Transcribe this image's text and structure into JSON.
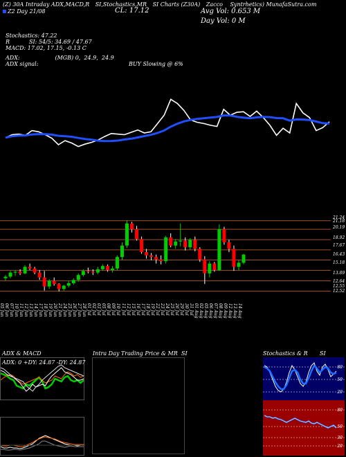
{
  "header": {
    "line1_parts": [
      "(Z) 30A Intraday",
      "ADX,MACD,R",
      "SI,Stochastics,MR",
      "SI Charts (Z30A)",
      "Zacco",
      "Syntrhetics) MunafaSutra.com"
    ],
    "line2": "Z2 Day 21/08",
    "close_label": "CL: 17.12",
    "avg_vol": "Avg Vol: 0.653 M",
    "day_vol": "Day Vol: 0  M"
  },
  "indicators": {
    "stochastics": "Stochastics: 47.22",
    "rsi": "R           SI: 54/5: 34.69 / 47.67",
    "macd": "MACD: 17.02,  17.15,  -0.13 C",
    "adx": "ADX:                    (MGB) 0,  24.9,  24.9",
    "adx_signal": "ADX  signal:",
    "buy_signal": "BUY Slowing @ 6%"
  },
  "price_levels": [
    "21.24",
    "21.18",
    "20.19",
    "18.92",
    "17.67",
    "16.43",
    "15.18",
    "13.89",
    "12.64",
    "12.55",
    "12.52"
  ],
  "dates": [
    "05 Jun",
    "06 Jun",
    "07 Jun",
    "10 Jun",
    "11 Jun",
    "12 Jun",
    "13 Jun",
    "14 Jun",
    "17 Jun",
    "18 Jun",
    "19 Jun",
    "20 Jun",
    "21 Jun",
    "24 Jun",
    "25 Jun",
    "26 Jun",
    "27 Jun",
    "28 Jun",
    "01 Jul",
    "02 Jul",
    "03 Jul",
    "05 Jul",
    "08 Jul",
    "09 Jul",
    "10 Jul",
    "11 Jul",
    "12 Jul",
    "15 Jul",
    "16 Jul",
    "17 Jul",
    "18 Jul",
    "19 Jul",
    "22 Jul",
    "23 Jul",
    "24 Jul",
    "25 Jul",
    "26 Jul",
    "29 Jul",
    "30 Jul",
    "31 Jul",
    "01 Aug",
    "02 Aug",
    "05 Aug",
    "06 Aug",
    "07 Aug",
    "08 Aug",
    "09 Aug",
    "12 Aug",
    "13 Aug",
    "14 Aug"
  ],
  "panels": {
    "adx_title": "ADX  & MACD",
    "adx_values": "ADX: 0  +DY: 24.87  -DY: 24.87",
    "mr_title": "Intra  Day Trading Price  & MR",
    "mr_si": "SI",
    "stoch_title": "Stochastics & R",
    "stoch_si": "SI",
    "stoch_ticks": [
      "80",
      "50",
      "20"
    ],
    "rsi_ticks": [
      "80",
      "50",
      "30",
      "20"
    ]
  },
  "colors": {
    "up": "#00cc00",
    "down": "#ff0000",
    "ma": "#1f4fff",
    "price": "#ffffff",
    "grid": "#a0522d",
    "stoch_bg": "#000066",
    "rsi_bg": "#9a0000"
  },
  "chart_data": {
    "type": "candlestick",
    "x": [
      "05 Jun",
      "06 Jun",
      "07 Jun",
      "10 Jun",
      "11 Jun",
      "12 Jun",
      "13 Jun",
      "14 Jun",
      "17 Jun",
      "18 Jun",
      "19 Jun",
      "20 Jun",
      "21 Jun",
      "24 Jun",
      "25 Jun",
      "26 Jun",
      "27 Jun",
      "28 Jun",
      "01 Jul",
      "02 Jul",
      "03 Jul",
      "05 Jul",
      "08 Jul",
      "09 Jul",
      "10 Jul",
      "11 Jul",
      "12 Jul",
      "15 Jul",
      "16 Jul",
      "17 Jul",
      "18 Jul",
      "19 Jul",
      "22 Jul",
      "23 Jul",
      "24 Jul",
      "25 Jul",
      "26 Jul",
      "29 Jul",
      "30 Jul",
      "31 Jul",
      "01 Aug",
      "02 Aug",
      "05 Aug",
      "06 Aug",
      "07 Aug",
      "08 Aug",
      "09 Aug",
      "12 Aug",
      "13 Aug",
      "14 Aug"
    ],
    "ohlc": [
      [
        14.2,
        14.6,
        13.9,
        14.4
      ],
      [
        14.4,
        15.1,
        14.2,
        14.9
      ],
      [
        14.9,
        15.2,
        14.5,
        15.0
      ],
      [
        15.0,
        15.3,
        14.6,
        14.8
      ],
      [
        14.8,
        15.8,
        14.7,
        15.6
      ],
      [
        15.6,
        16.0,
        15.2,
        15.4
      ],
      [
        15.4,
        15.6,
        14.7,
        14.9
      ],
      [
        14.9,
        15.2,
        14.0,
        14.3
      ],
      [
        14.3,
        15.1,
        12.7,
        13.2
      ],
      [
        13.2,
        14.1,
        12.9,
        13.9
      ],
      [
        13.9,
        14.3,
        13.3,
        13.5
      ],
      [
        13.5,
        13.6,
        12.6,
        12.9
      ],
      [
        12.9,
        13.4,
        12.7,
        13.3
      ],
      [
        13.3,
        13.9,
        13.1,
        13.6
      ],
      [
        13.6,
        14.2,
        13.4,
        14.0
      ],
      [
        14.0,
        14.8,
        13.8,
        14.6
      ],
      [
        14.6,
        15.3,
        14.4,
        15.1
      ],
      [
        15.1,
        15.5,
        14.8,
        15.0
      ],
      [
        15.0,
        15.3,
        14.6,
        14.9
      ],
      [
        14.9,
        15.6,
        14.7,
        15.3
      ],
      [
        15.3,
        15.9,
        15.1,
        15.7
      ],
      [
        15.7,
        15.9,
        15.0,
        15.2
      ],
      [
        15.2,
        15.7,
        14.9,
        15.4
      ],
      [
        15.4,
        17.0,
        15.2,
        16.8
      ],
      [
        16.8,
        18.6,
        16.4,
        18.2
      ],
      [
        18.2,
        21.3,
        17.9,
        20.9
      ],
      [
        20.9,
        21.1,
        19.8,
        20.2
      ],
      [
        20.2,
        20.6,
        18.8,
        19.0
      ],
      [
        19.0,
        19.3,
        17.2,
        17.4
      ],
      [
        17.4,
        17.8,
        16.6,
        17.0
      ],
      [
        17.0,
        17.3,
        16.4,
        16.8
      ],
      [
        16.8,
        17.1,
        16.0,
        16.5
      ],
      [
        16.5,
        17.0,
        15.9,
        16.3
      ],
      [
        16.3,
        19.4,
        16.0,
        19.2
      ],
      [
        19.2,
        19.7,
        18.0,
        18.2
      ],
      [
        18.2,
        19.0,
        17.8,
        18.7
      ],
      [
        18.7,
        20.9,
        18.1,
        18.8
      ],
      [
        18.8,
        19.2,
        17.6,
        18.0
      ],
      [
        18.0,
        19.1,
        17.7,
        18.9
      ],
      [
        18.9,
        19.3,
        17.5,
        17.8
      ],
      [
        17.8,
        18.0,
        16.2,
        16.5
      ],
      [
        16.5,
        16.9,
        13.5,
        14.8
      ],
      [
        14.8,
        16.3,
        14.3,
        16.0
      ],
      [
        16.0,
        16.2,
        15.0,
        15.2
      ],
      [
        15.2,
        20.8,
        15.1,
        20.2
      ],
      [
        20.2,
        20.5,
        18.3,
        18.6
      ],
      [
        18.6,
        18.9,
        17.4,
        17.8
      ],
      [
        17.8,
        18.2,
        15.1,
        15.6
      ],
      [
        15.6,
        16.4,
        15.2,
        16.1
      ],
      [
        16.1,
        17.2,
        15.9,
        17.1
      ]
    ],
    "ylim": [
      12.5,
      21.3
    ],
    "grid_levels": [
      21.24,
      20.19,
      18.92,
      17.67,
      16.43,
      15.18,
      13.89,
      12.64
    ]
  }
}
